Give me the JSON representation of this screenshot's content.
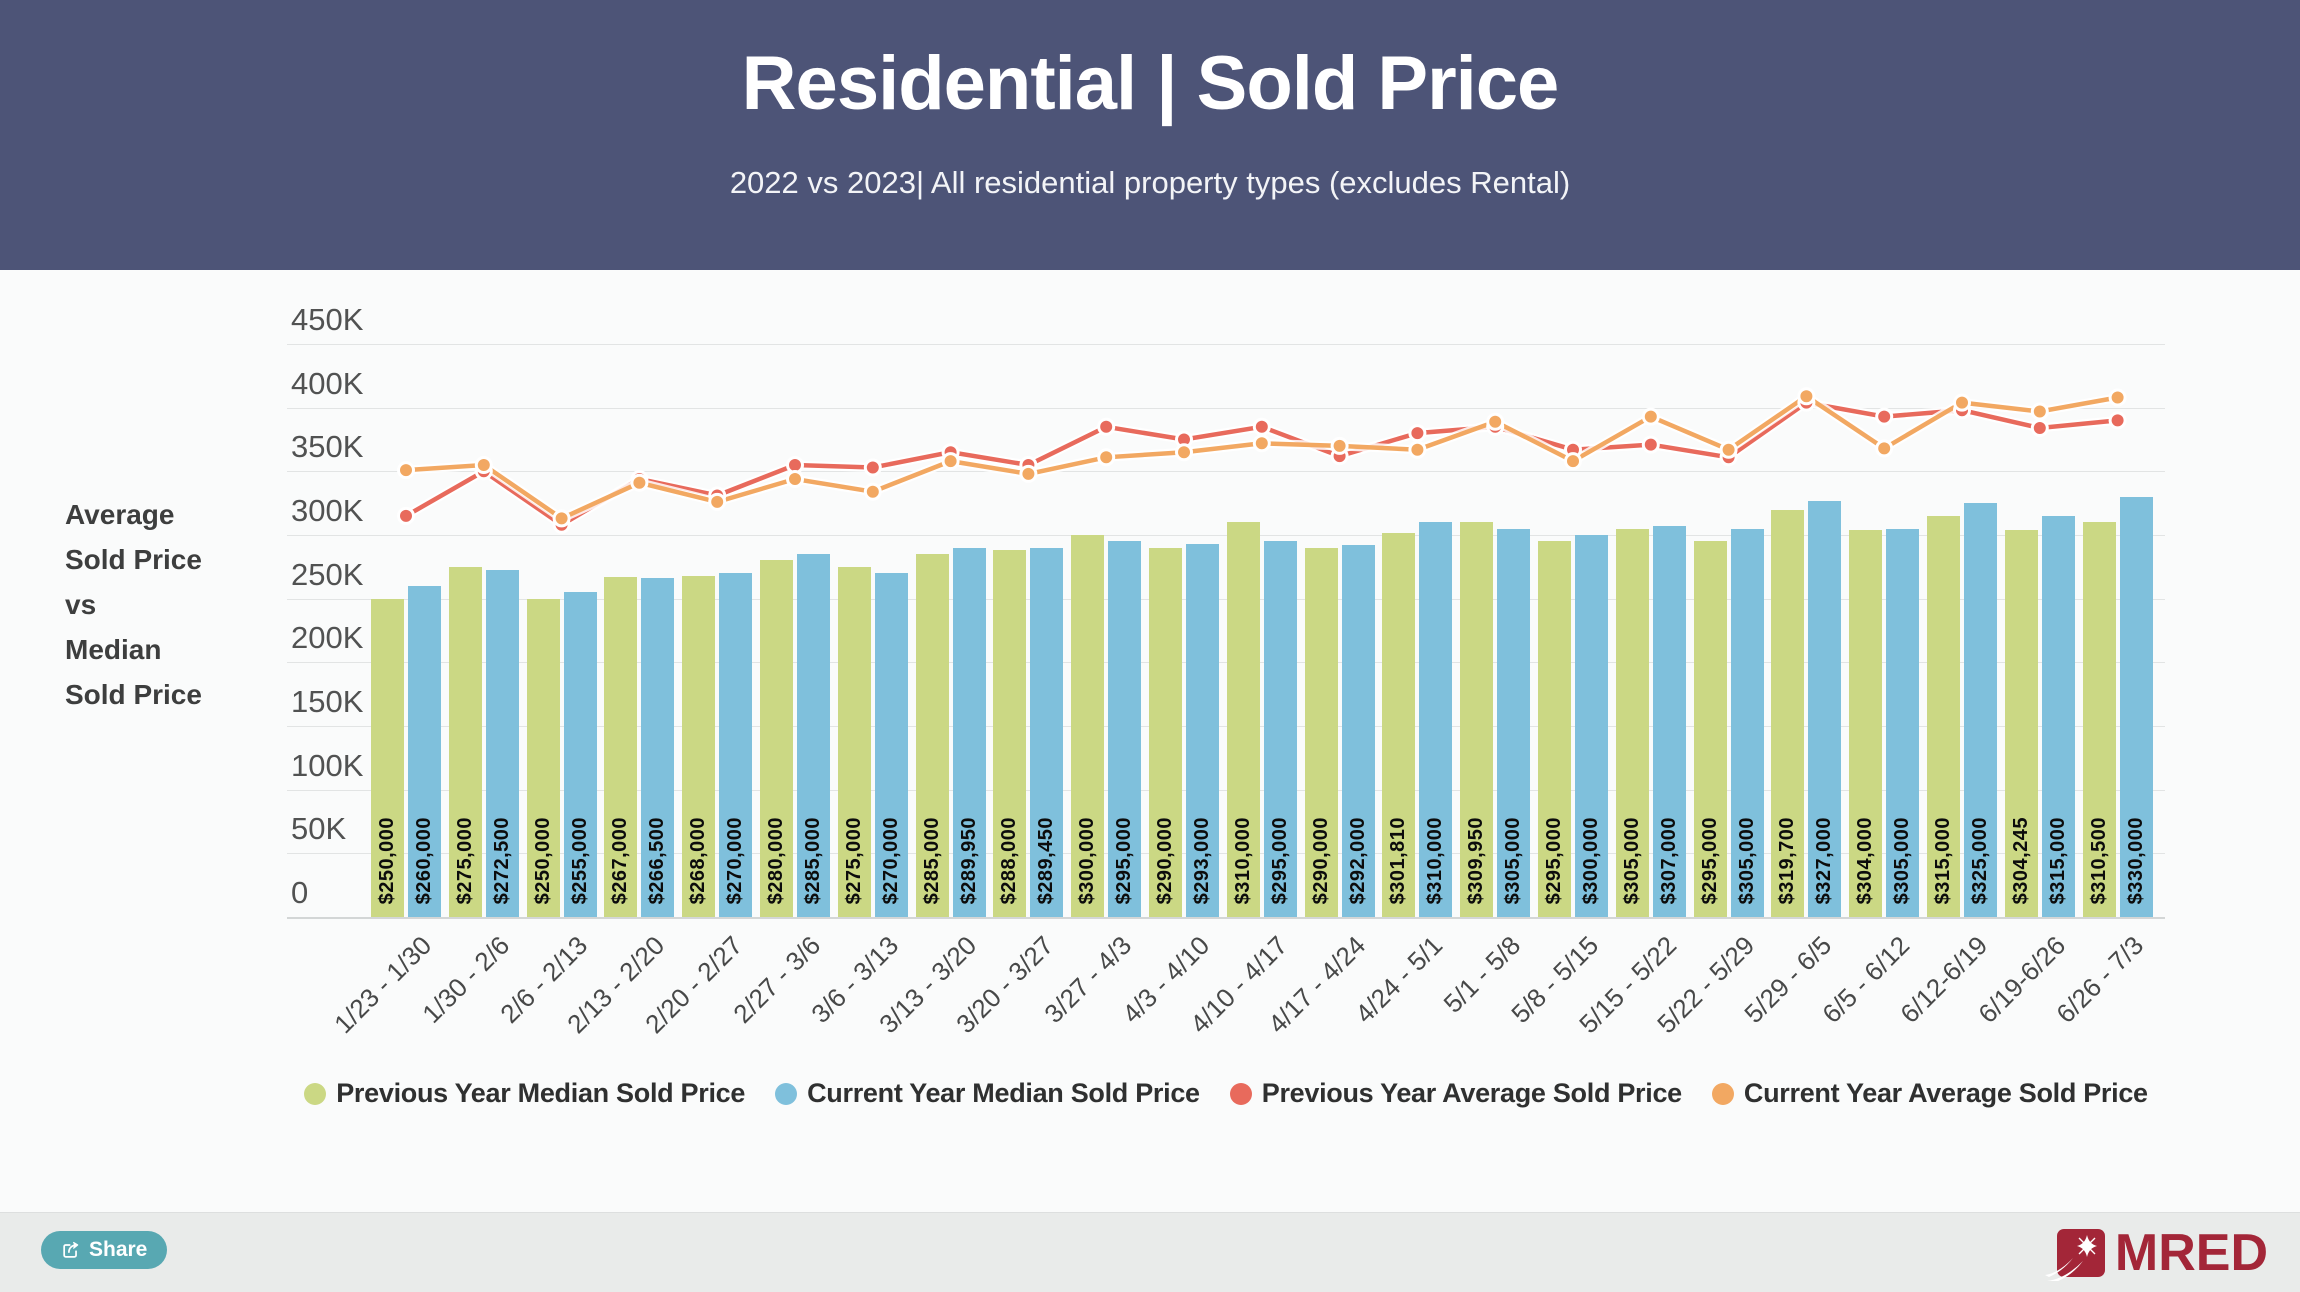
{
  "header": {
    "title": "Residential | Sold Price",
    "subtitle": "2022 vs 2023| All residential property types (excludes Rental)"
  },
  "side_label": {
    "lines": [
      "Average",
      "Sold Price",
      "vs",
      "Median",
      "Sold Price"
    ]
  },
  "chart_data": {
    "type": "bar+line combo",
    "categories": [
      "1/23 - 1/30",
      "1/30 - 2/6",
      "2/6 - 2/13",
      "2/13 - 2/20",
      "2/20 - 2/27",
      "2/27 - 3/6",
      "3/6 - 3/13",
      "3/13 - 3/20",
      "3/20 - 3/27",
      "3/27 - 4/3",
      "4/3 - 4/10",
      "4/10 - 4/17",
      "4/17 - 4/24",
      "4/24 - 5/1",
      "5/1 - 5/8",
      "5/8 - 5/15",
      "5/15 - 5/22",
      "5/22 - 5/29",
      "5/29 - 6/5",
      "6/5 - 6/12",
      "6/12-6/19",
      "6/19-6/26",
      "6/26 - 7/3"
    ],
    "series": [
      {
        "name": "Previous Year Median Sold Price",
        "type": "bar",
        "color": "#cbd884",
        "values": [
          250000,
          275000,
          250000,
          267000,
          268000,
          280000,
          275000,
          285000,
          288000,
          300000,
          290000,
          310000,
          290000,
          301810,
          309950,
          295000,
          305000,
          295000,
          319700,
          304000,
          315000,
          304245,
          310500
        ],
        "labels_shown": true
      },
      {
        "name": "Current Year Median Sold Price",
        "type": "bar",
        "color": "#7fc0dc",
        "values": [
          260000,
          272500,
          255000,
          266500,
          270000,
          285000,
          270000,
          289950,
          289450,
          295000,
          293000,
          295000,
          292000,
          310000,
          305000,
          300000,
          307000,
          305000,
          327000,
          305000,
          325000,
          315000,
          330000
        ],
        "labels_shown": true
      },
      {
        "name": "Previous Year Average Sold Price",
        "type": "line",
        "color": "#e86a5c",
        "values_estimated": true,
        "values": [
          315000,
          350000,
          308000,
          344000,
          331000,
          355000,
          353000,
          365000,
          355000,
          385000,
          375000,
          385000,
          362000,
          380000,
          385000,
          367000,
          371000,
          361000,
          404000,
          393000,
          398000,
          384000,
          390000
        ]
      },
      {
        "name": "Current Year Average Sold Price",
        "type": "line",
        "color": "#f2a862",
        "values_estimated": true,
        "values": [
          351000,
          355000,
          313000,
          341000,
          326000,
          344000,
          334000,
          358000,
          348000,
          361000,
          365000,
          372000,
          370000,
          367000,
          389000,
          358000,
          393000,
          367000,
          409000,
          368000,
          404000,
          397000,
          408000
        ]
      }
    ],
    "y_axis": {
      "min": 0,
      "max": 450000,
      "tick_labels": [
        "450K",
        "400K",
        "350K",
        "300K",
        "250K",
        "200K",
        "150K",
        "100K",
        "50K",
        "0"
      ]
    },
    "grid": "horizontal",
    "legend_position": "bottom",
    "bar_value_format": "$#,###"
  },
  "footer": {
    "share_label": "Share",
    "brand": "MRED"
  },
  "colors": {
    "header_bg": "#4d5477",
    "main_bg": "#fafbfb",
    "footer_bg": "#e9ebea",
    "green_bar": "#cbd884",
    "blue_bar": "#7fc0dc",
    "red_line": "#e86a5c",
    "orange_line": "#f2a862",
    "share_button": "#58a8b2",
    "brand_red": "#a32638"
  }
}
